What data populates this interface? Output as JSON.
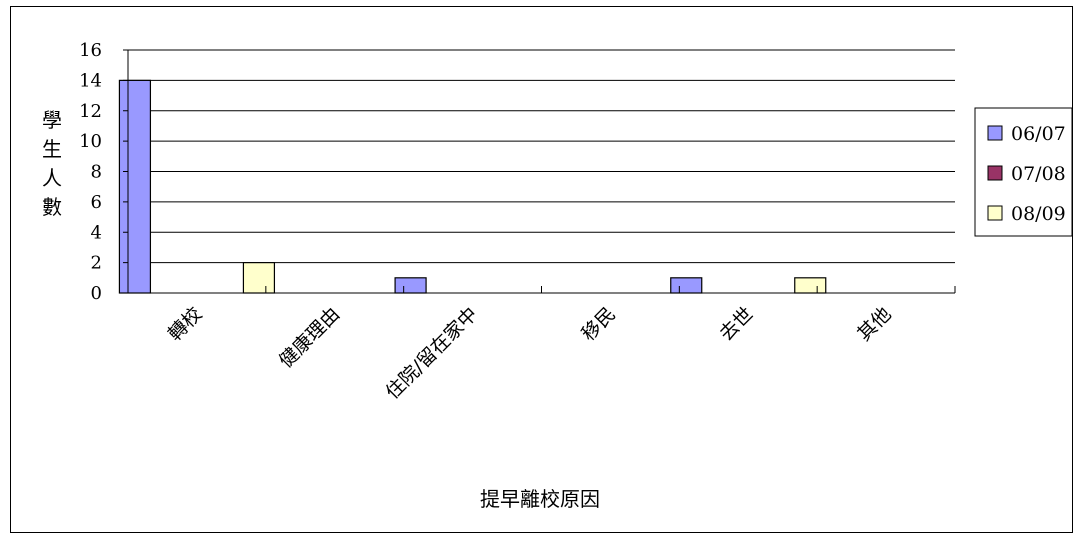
{
  "chart_data": {
    "type": "bar",
    "title": "",
    "xlabel": "提早離校原因",
    "ylabel": "學生人數",
    "categories": [
      "轉校",
      "健康理由",
      "住院/留在家中",
      "移民",
      "去世",
      "其他"
    ],
    "series": [
      {
        "name": "06/07",
        "color": "#9999ff",
        "values": [
          14,
          0,
          1,
          0,
          1,
          0
        ]
      },
      {
        "name": "07/08",
        "color": "#993366",
        "values": [
          0,
          0,
          0,
          0,
          0,
          0
        ]
      },
      {
        "name": "08/09",
        "color": "#ffffcc",
        "values": [
          2,
          0,
          0,
          0,
          1,
          0
        ]
      }
    ],
    "ylim": [
      0,
      16
    ],
    "yticks": [
      0,
      2,
      4,
      6,
      8,
      10,
      12,
      14,
      16
    ],
    "grid": true,
    "legend_position": "right"
  }
}
